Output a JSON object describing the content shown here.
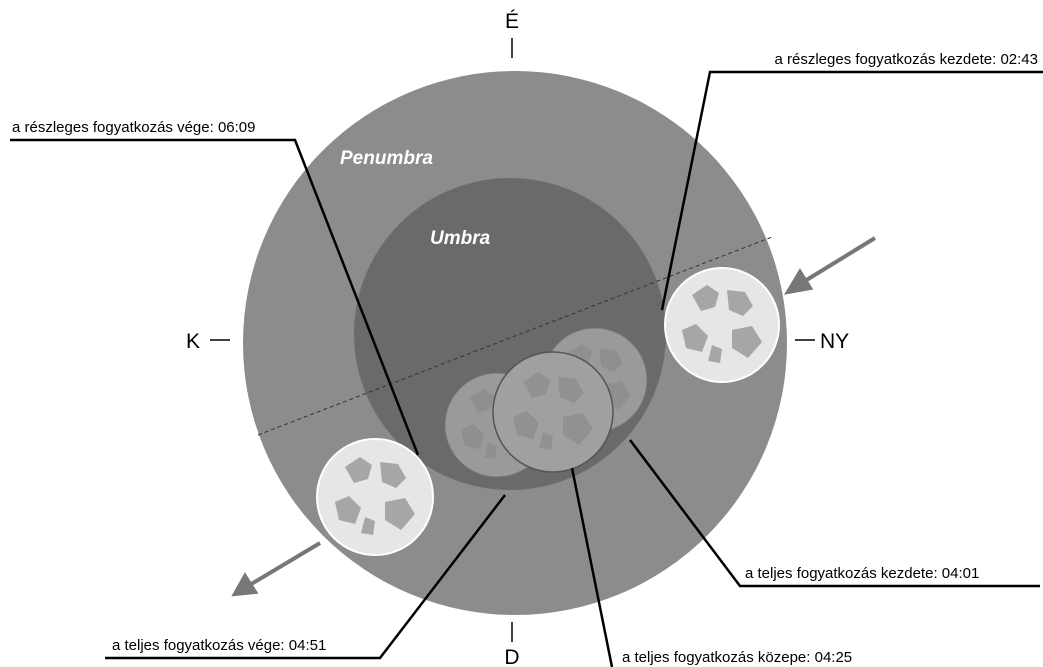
{
  "compass": {
    "north": "É",
    "south": "D",
    "east": "K",
    "west": "NY"
  },
  "regions": {
    "penumbra": "Penumbra",
    "umbra": "Umbra"
  },
  "annotations": [
    {
      "label": "a részleges fogyatkozás kezdete: 02:43"
    },
    {
      "label": "a részleges fogyatkozás vége: 06:09"
    },
    {
      "label": "a teljes fogyatkozás kezdete: 04:01"
    },
    {
      "label": "a teljes fogyatkozás vége: 04:51"
    },
    {
      "label": "a teljes fogyatkozás közepe: 04:25"
    }
  ]
}
